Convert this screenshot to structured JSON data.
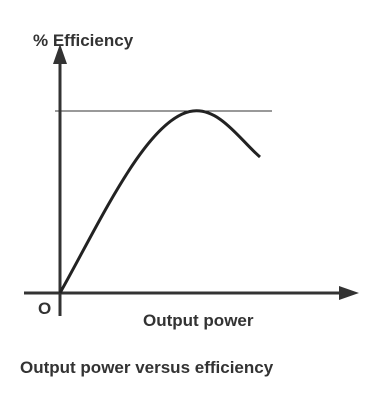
{
  "axes": {
    "y_label": "% Efficiency",
    "origin_label": "O",
    "x_label": "Output power"
  },
  "caption": "Output power versus efficiency"
}
